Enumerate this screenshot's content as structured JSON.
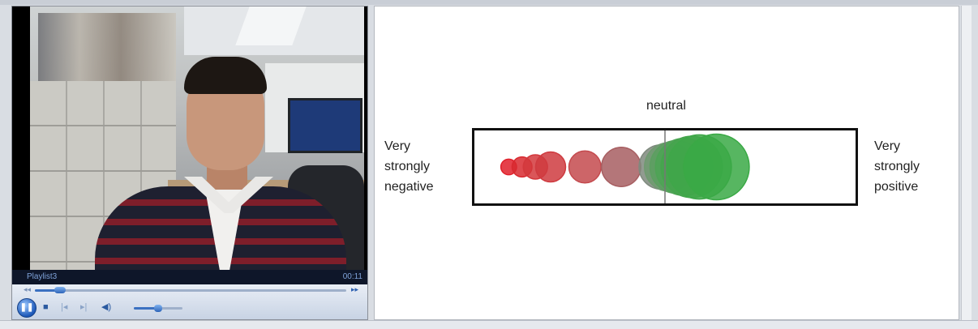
{
  "player": {
    "playlist_name": "Playlist3",
    "time": "00:11",
    "seek_progress": 0.08,
    "volume_level": 0.5,
    "icons": [
      "pause-icon",
      "stop-icon",
      "previous-icon",
      "next-icon",
      "volume-icon",
      "rewind-icon",
      "fast-forward-icon"
    ]
  },
  "sentiment": {
    "neutral_label": "neutral",
    "left_label": [
      "Very",
      "strongly",
      "negative"
    ],
    "right_label": [
      "Very",
      "strongly",
      "positive"
    ],
    "neutral_position": 0.5,
    "markers": [
      {
        "position": 0.09,
        "size": 0.22,
        "color": "#e0202a"
      },
      {
        "position": 0.125,
        "size": 0.28,
        "color": "#d82a30"
      },
      {
        "position": 0.16,
        "size": 0.34,
        "color": "#d3383c"
      },
      {
        "position": 0.2,
        "size": 0.42,
        "color": "#cf3b40"
      },
      {
        "position": 0.29,
        "size": 0.45,
        "color": "#c44a4e"
      },
      {
        "position": 0.385,
        "size": 0.55,
        "color": "#a75e61"
      },
      {
        "position": 0.49,
        "size": 0.62,
        "color": "#7f8a7e"
      },
      {
        "position": 0.51,
        "size": 0.68,
        "color": "#6f9a70"
      },
      {
        "position": 0.53,
        "size": 0.74,
        "color": "#5c9f60"
      },
      {
        "position": 0.55,
        "size": 0.8,
        "color": "#4ea355"
      },
      {
        "position": 0.57,
        "size": 0.86,
        "color": "#45a54d"
      },
      {
        "position": 0.59,
        "size": 0.9,
        "color": "#3fa749"
      },
      {
        "position": 0.635,
        "size": 0.92,
        "color": "#3aa945"
      }
    ],
    "colors": {
      "negative": "#e0202a",
      "neutral": "#808080",
      "positive": "#3aa945"
    }
  }
}
